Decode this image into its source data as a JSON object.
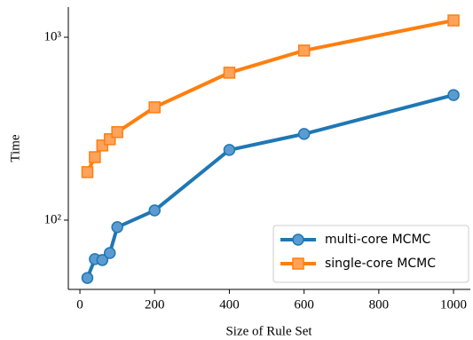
{
  "chart_data": {
    "type": "line",
    "x_label": "Size of Rule Set",
    "y_label": "Time",
    "x": [
      20,
      40,
      60,
      80,
      100,
      200,
      400,
      600,
      1000
    ],
    "series": [
      {
        "name": "multi-core MCMC",
        "color": "#1f77b4",
        "marker": "circle",
        "values": [
          48.3,
          61.2,
          60.5,
          66.1,
          91.5,
          113,
          242,
          296,
          483
        ]
      },
      {
        "name": "single-core MCMC",
        "color": "#ff7f0e",
        "marker": "square",
        "values": [
          183,
          221,
          256,
          277,
          303,
          414,
          640,
          846,
          1236
        ]
      }
    ],
    "xlim": [
      -31,
      1045
    ],
    "xticks": [
      0,
      200,
      400,
      600,
      800,
      1000
    ],
    "ylim": [
      41.8,
      1462
    ],
    "yticks": [
      {
        "value": 100,
        "label": "10²"
      },
      {
        "value": 1000,
        "label": "10³"
      }
    ],
    "y_scale": "log",
    "legend": "lower right"
  }
}
